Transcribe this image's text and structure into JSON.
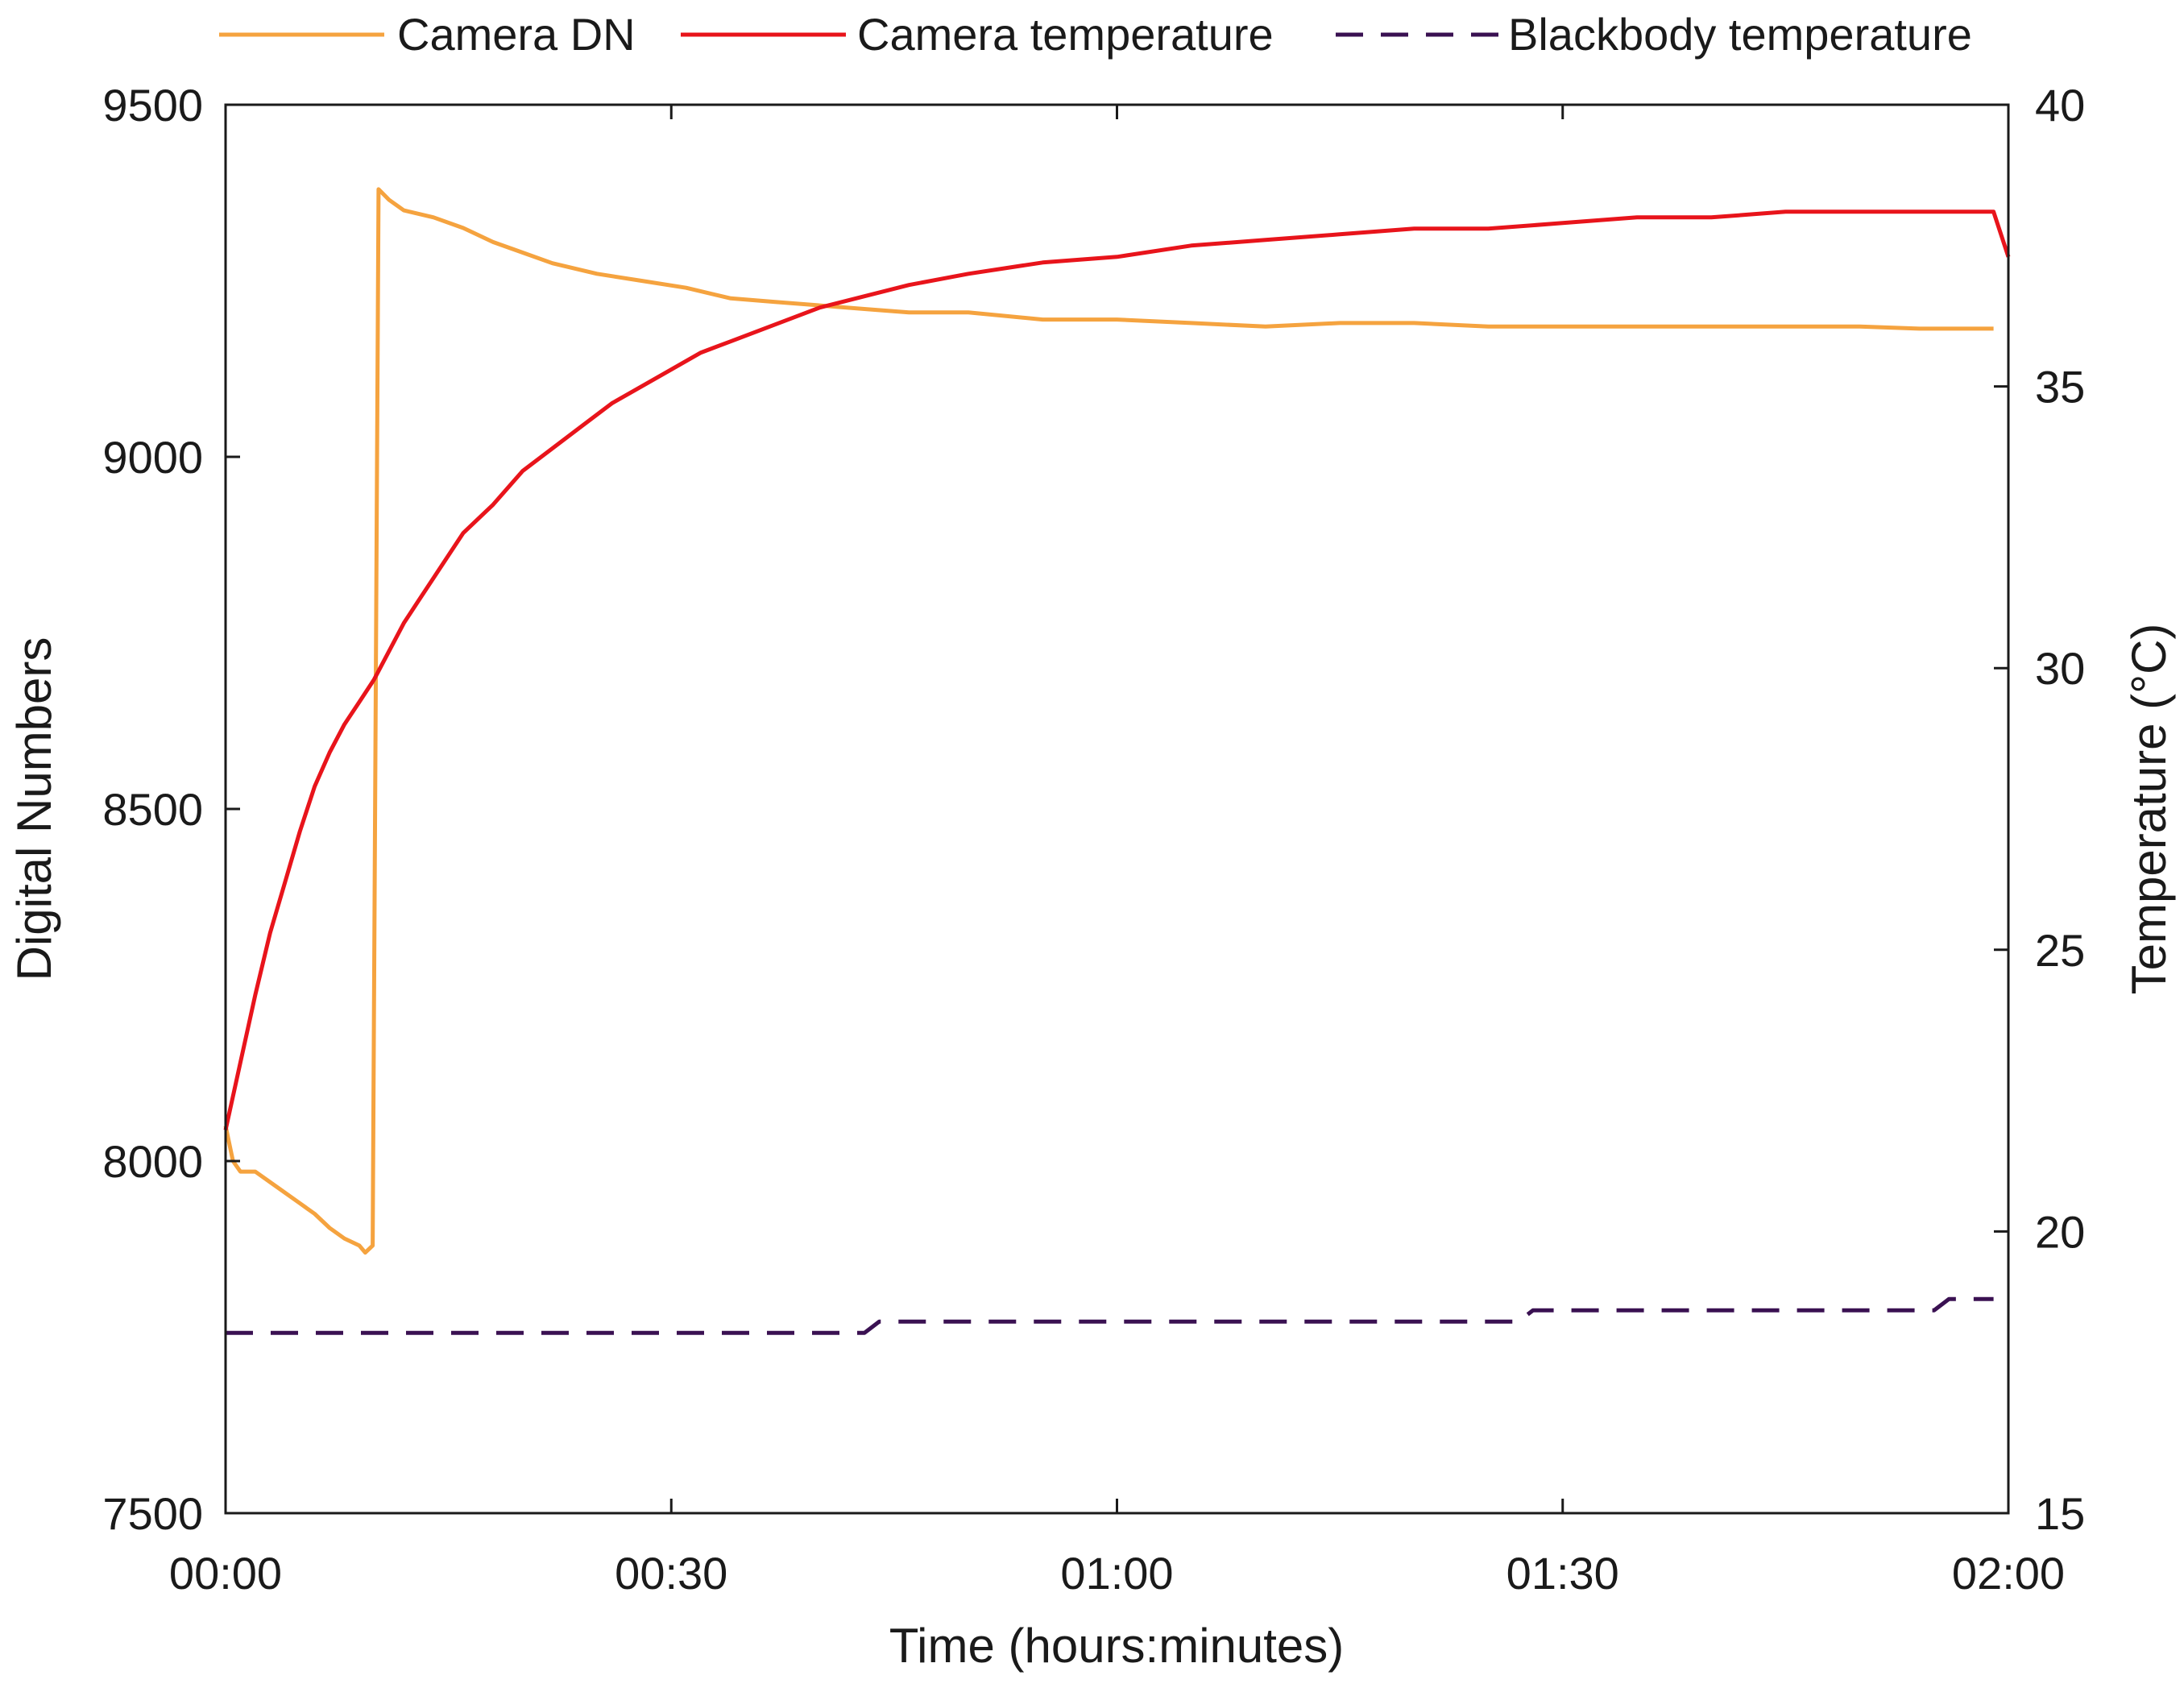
{
  "chart_data": {
    "type": "line",
    "title": "",
    "xlabel": "Time (hours:minutes)",
    "ylabel": "Digital Numbers",
    "y2label": "Temperature (°C)",
    "xlim": [
      0,
      120
    ],
    "ylim": [
      7500,
      9500
    ],
    "y2lim": [
      15,
      40
    ],
    "x_ticks": [
      0,
      30,
      60,
      90,
      120
    ],
    "x_tick_labels": [
      "00:00",
      "00:30",
      "01:00",
      "01:30",
      "02:00"
    ],
    "y_ticks": [
      7500,
      8000,
      8500,
      9000,
      9500
    ],
    "y_tick_labels": [
      "7500",
      "8000",
      "8500",
      "9000",
      "9500"
    ],
    "y2_ticks": [
      15,
      20,
      25,
      30,
      35,
      40
    ],
    "y2_tick_labels": [
      "15",
      "20",
      "25",
      "30",
      "35",
      "40"
    ],
    "grid": false,
    "legend_position": "top",
    "series": [
      {
        "name": "Camera DN",
        "axis": "left",
        "color": "#f5a33f",
        "style": "solid",
        "x": [
          0,
          0.5,
          1,
          2,
          3,
          4,
          5,
          6,
          7,
          8,
          9,
          9.4,
          9.9,
          10.3,
          11,
          12,
          14,
          16,
          18,
          20,
          22,
          25,
          28,
          31,
          34,
          37,
          40,
          43,
          46,
          50,
          55,
          60,
          65,
          70,
          75,
          80,
          85,
          90,
          95,
          100,
          105,
          110,
          114,
          119
        ],
        "y": [
          8050,
          8000,
          7985,
          7985,
          7970,
          7955,
          7940,
          7925,
          7905,
          7890,
          7880,
          7870,
          7880,
          9380,
          9365,
          9350,
          9340,
          9325,
          9305,
          9290,
          9275,
          9260,
          9250,
          9240,
          9225,
          9220,
          9215,
          9210,
          9205,
          9205,
          9195,
          9195,
          9190,
          9185,
          9190,
          9190,
          9185,
          9185,
          9185,
          9185,
          9185,
          9185,
          9182,
          9182
        ]
      },
      {
        "name": "Camera temperature",
        "axis": "right",
        "color": "#e8141b",
        "style": "solid",
        "x": [
          0,
          1,
          2,
          3,
          4,
          5,
          6,
          7,
          8,
          9,
          10,
          11,
          12,
          13,
          14,
          15,
          16,
          18,
          20,
          22,
          24,
          26,
          28,
          30,
          32,
          34,
          36,
          38,
          40,
          43,
          46,
          50,
          55,
          60,
          65,
          70,
          75,
          80,
          85,
          90,
          95,
          100,
          105,
          110,
          115,
          119,
          120
        ],
        "y": [
          21.8,
          23.0,
          24.2,
          25.3,
          26.2,
          27.1,
          27.9,
          28.5,
          29.0,
          29.4,
          29.8,
          30.3,
          30.8,
          31.2,
          31.6,
          32.0,
          32.4,
          32.9,
          33.5,
          33.9,
          34.3,
          34.7,
          35.0,
          35.3,
          35.6,
          35.8,
          36.0,
          36.2,
          36.4,
          36.6,
          36.8,
          37.0,
          37.2,
          37.3,
          37.5,
          37.6,
          37.7,
          37.8,
          37.8,
          37.9,
          38.0,
          38.0,
          38.1,
          38.1,
          38.1,
          38.1,
          37.3
        ]
      },
      {
        "name": "Blackbody temperature",
        "axis": "right",
        "color": "#3a1152",
        "style": "dashed",
        "x": [
          0,
          43,
          44,
          87,
          88,
          115,
          116,
          119
        ],
        "y": [
          18.2,
          18.2,
          18.4,
          18.4,
          18.6,
          18.6,
          18.8,
          18.8
        ]
      }
    ]
  }
}
